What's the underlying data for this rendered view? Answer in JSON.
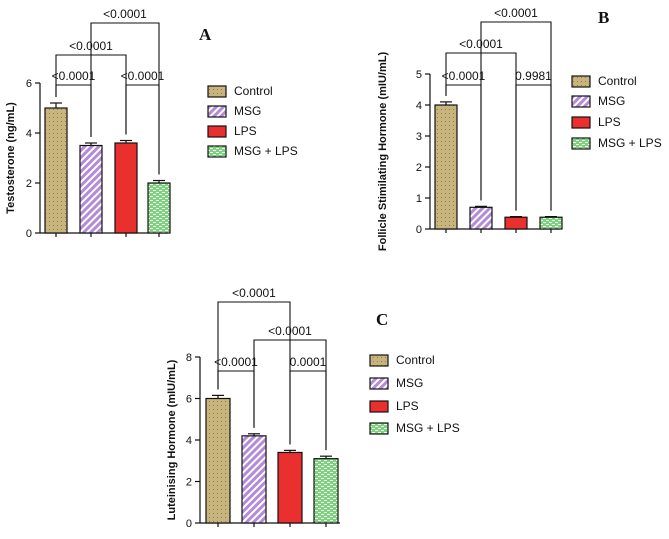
{
  "colors": {
    "control": "#c8b57e",
    "msg": "#b48bd8",
    "lps": "#ea2f2f",
    "msg_lps": "#7bd37b"
  },
  "chart_data": [
    {
      "id": "A",
      "type": "bar",
      "panel_label": "A",
      "categories": [
        "Control",
        "MSG",
        "LPS",
        "MSG + LPS"
      ],
      "values": [
        5.0,
        3.5,
        3.6,
        2.0
      ],
      "errors": [
        0.2,
        0.1,
        0.1,
        0.1
      ],
      "ylabel": "Testosterone (ng/mL)",
      "ylim": [
        0,
        6
      ],
      "yticks": [
        0,
        2,
        4,
        6
      ],
      "legend": [
        "Control",
        "MSG",
        "LPS",
        "MSG + LPS"
      ],
      "comparisons": [
        {
          "from": 0,
          "to": 1,
          "label": "<0.0001"
        },
        {
          "from": 2,
          "to": 3,
          "label": "<0.0001"
        },
        {
          "from": 0,
          "to": 2,
          "label": "<0.0001"
        },
        {
          "from": 1,
          "to": 3,
          "label": "<0.0001"
        }
      ]
    },
    {
      "id": "B",
      "type": "bar",
      "panel_label": "B",
      "categories": [
        "Control",
        "MSG",
        "LPS",
        "MSG + LPS"
      ],
      "values": [
        4.0,
        0.7,
        0.38,
        0.38
      ],
      "errors": [
        0.1,
        0.03,
        0.02,
        0.02
      ],
      "ylabel": "Follicle Stimilating Hormone (mIU/mL)",
      "ylim": [
        0,
        5
      ],
      "yticks": [
        0,
        1,
        2,
        3,
        4,
        5
      ],
      "legend": [
        "Control",
        "MSG",
        "LPS",
        "MSG + LPS"
      ],
      "comparisons": [
        {
          "from": 0,
          "to": 1,
          "label": "<0.0001"
        },
        {
          "from": 2,
          "to": 3,
          "label": "0.9981"
        },
        {
          "from": 0,
          "to": 2,
          "label": "<0.0001"
        },
        {
          "from": 1,
          "to": 3,
          "label": "<0.0001"
        }
      ]
    },
    {
      "id": "C",
      "type": "bar",
      "panel_label": "C",
      "categories": [
        "Control",
        "MSG",
        "LPS",
        "MSG + LPS"
      ],
      "values": [
        6.0,
        4.2,
        3.4,
        3.1
      ],
      "errors": [
        0.15,
        0.1,
        0.1,
        0.12
      ],
      "ylabel": "Luteinising Hormone (mIU/mL)",
      "ylim": [
        0,
        8
      ],
      "yticks": [
        0,
        2,
        4,
        6,
        8
      ],
      "legend": [
        "Control",
        "MSG",
        "LPS",
        "MSG + LPS"
      ],
      "comparisons": [
        {
          "from": 0,
          "to": 1,
          "label": "<0.0001"
        },
        {
          "from": 2,
          "to": 3,
          "label": "0.0001"
        },
        {
          "from": 1,
          "to": 3,
          "label": "<0.0001"
        },
        {
          "from": 0,
          "to": 2,
          "label": "<0.0001"
        }
      ]
    }
  ]
}
